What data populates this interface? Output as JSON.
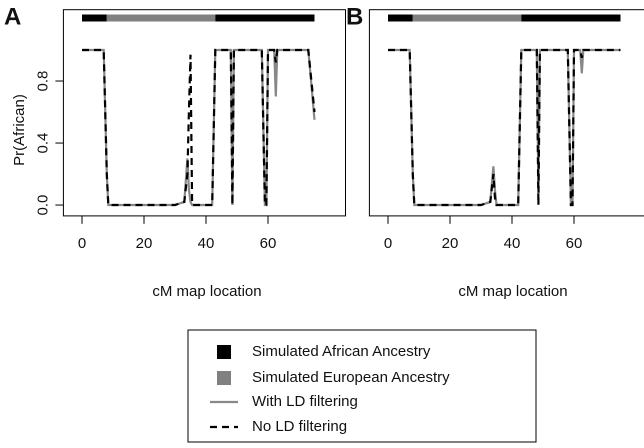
{
  "chart_data": [
    {
      "type": "line",
      "label": "A",
      "ylabel": "Pr(African)",
      "xlabel": "cM map location",
      "xlim": [
        -6,
        85
      ],
      "ylim": [
        -0.07,
        1.26
      ],
      "xticks": [
        0,
        20,
        40,
        60
      ],
      "yticks": [
        {
          "value": 0,
          "label": "0.0"
        },
        {
          "value": 0.4,
          "label": "0.4"
        },
        {
          "value": 0.8,
          "label": "0.8"
        }
      ],
      "ancestry": [
        {
          "name": "Simulated African Ancestry",
          "color": "#000000"
        },
        {
          "name": "Simulated European Ancestry",
          "color": "#808080"
        }
      ],
      "segments": [
        {
          "start": 0,
          "end": 8,
          "color": "#000000"
        },
        {
          "start": 8,
          "end": 43,
          "color": "#808080"
        },
        {
          "start": 43,
          "end": 75,
          "color": "#000000"
        }
      ],
      "x": [
        0,
        6,
        7,
        8,
        8.5,
        20,
        30,
        33,
        34,
        34.5,
        35,
        35.5,
        42,
        43,
        48,
        48.5,
        49,
        58,
        59,
        59.5,
        60,
        61,
        62,
        62.5,
        63,
        70,
        73,
        75
      ],
      "series": [
        {
          "name": "With LD filtering",
          "color": "#888888",
          "dash": false,
          "values": [
            1,
            1,
            1,
            0.2,
            0,
            0,
            0,
            0.02,
            0.3,
            0.1,
            0.02,
            0,
            0,
            1,
            1,
            0,
            1,
            1,
            0,
            0,
            1,
            1,
            1,
            0.7,
            1,
            1,
            1,
            0.55
          ]
        },
        {
          "name": "No LD filtering",
          "color": "#000000",
          "dash": true,
          "values": [
            1,
            1,
            1,
            0.2,
            0,
            0,
            0,
            0.02,
            0.2,
            0.6,
            0.97,
            0,
            0,
            1,
            1,
            0,
            1,
            1,
            0,
            0,
            1,
            1,
            1,
            0.92,
            1,
            1,
            1,
            0.6
          ]
        }
      ]
    },
    {
      "type": "line",
      "label": "B",
      "xlabel": "cM map location",
      "xlim": [
        -6,
        85
      ],
      "ylim": [
        -0.07,
        1.26
      ],
      "xticks": [
        0,
        20,
        40,
        60
      ],
      "segments": [
        {
          "start": 0,
          "end": 8,
          "color": "#000000"
        },
        {
          "start": 8,
          "end": 43,
          "color": "#808080"
        },
        {
          "start": 43,
          "end": 75,
          "color": "#000000"
        }
      ],
      "x": [
        0,
        6,
        7,
        8,
        8.5,
        20,
        30,
        33,
        34,
        34.5,
        35,
        35.5,
        42,
        43,
        48,
        48.5,
        49,
        58,
        59,
        59.5,
        60,
        61,
        62,
        62.5,
        63,
        70,
        73,
        75
      ],
      "series": [
        {
          "color": "#888888",
          "dash": false,
          "values": [
            1,
            1,
            1,
            0.2,
            0,
            0,
            0,
            0.02,
            0.25,
            0.1,
            0,
            0,
            0,
            1,
            1,
            0.1,
            1,
            1,
            0,
            0,
            1,
            1,
            1,
            0.85,
            1,
            1,
            1,
            1
          ]
        },
        {
          "color": "#000000",
          "dash": true,
          "values": [
            1,
            1,
            1,
            0.2,
            0,
            0,
            0,
            0.02,
            0.2,
            0.05,
            0,
            0,
            0,
            1,
            1,
            0,
            1,
            1,
            0,
            0,
            1,
            1,
            1,
            0.95,
            1,
            1,
            1,
            1
          ]
        }
      ]
    }
  ]
}
